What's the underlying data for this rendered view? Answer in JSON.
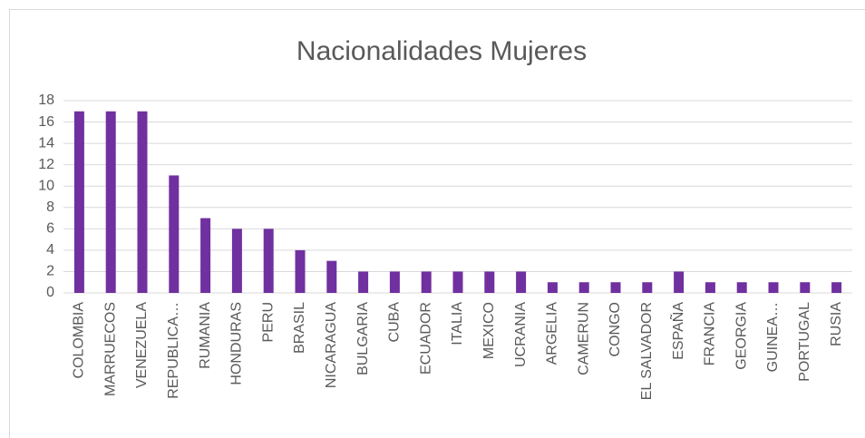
{
  "chart_data": {
    "type": "bar",
    "title": "Nacionalidades Mujeres",
    "categories": [
      "COLOMBIA",
      "MARRUECOS",
      "VENEZUELA",
      "REPUBLICA…",
      "RUMANIA",
      "HONDURAS",
      "PERU",
      "BRASIL",
      "NICARAGUA",
      "BULGARIA",
      "CUBA",
      "ECUADOR",
      "ITALIA",
      "MEXICO",
      "UCRANIA",
      "ARGELIA",
      "CAMERUN",
      "CONGO",
      "EL SALVADOR",
      "ESPAÑA",
      "FRANCIA",
      "GEORGIA",
      "GUINEA…",
      "PORTUGAL",
      "RUSIA"
    ],
    "values": [
      17,
      17,
      17,
      11,
      7,
      6,
      6,
      4,
      3,
      2,
      2,
      2,
      2,
      2,
      2,
      1,
      1,
      1,
      1,
      2,
      1,
      1,
      1,
      1,
      1
    ],
    "color": "#7030a0",
    "ylim": [
      0,
      18
    ],
    "yticks": [
      0,
      2,
      4,
      6,
      8,
      10,
      12,
      14,
      16,
      18
    ],
    "grid": true
  }
}
